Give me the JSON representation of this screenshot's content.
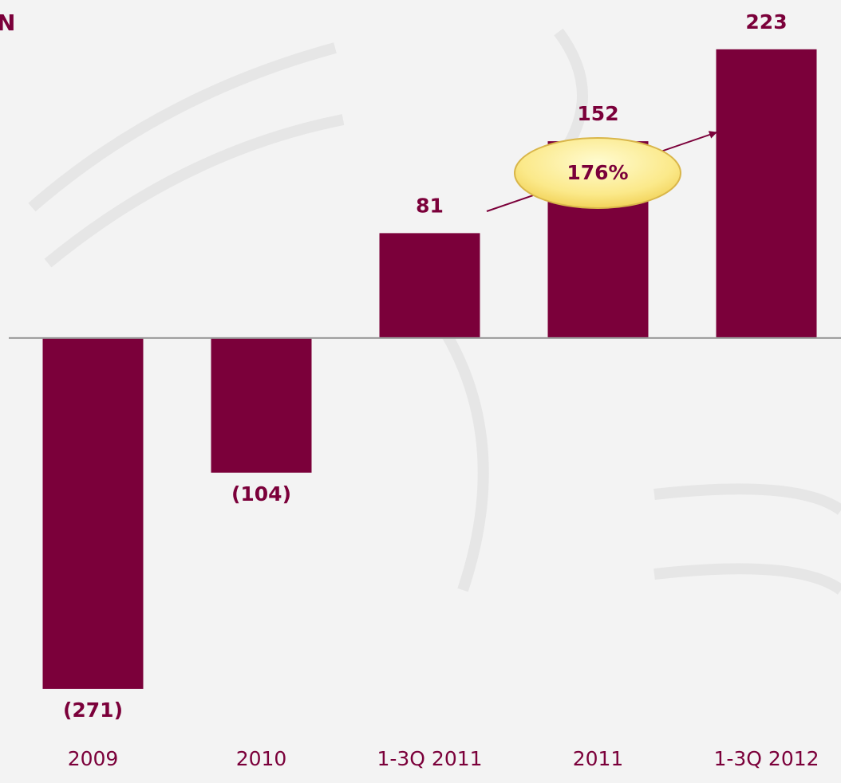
{
  "chart_data": {
    "type": "bar",
    "title": "N",
    "categories": [
      "2009",
      "2010",
      "1-3Q 2011",
      "2011",
      "1-3Q 2012"
    ],
    "values": [
      -271,
      -104,
      81,
      152,
      223
    ],
    "value_labels": [
      "(271)",
      "(104)",
      "81",
      "152",
      "223"
    ],
    "color": "#7b003a",
    "annotations": [
      "176%"
    ],
    "ylim": [
      -300,
      250
    ]
  }
}
